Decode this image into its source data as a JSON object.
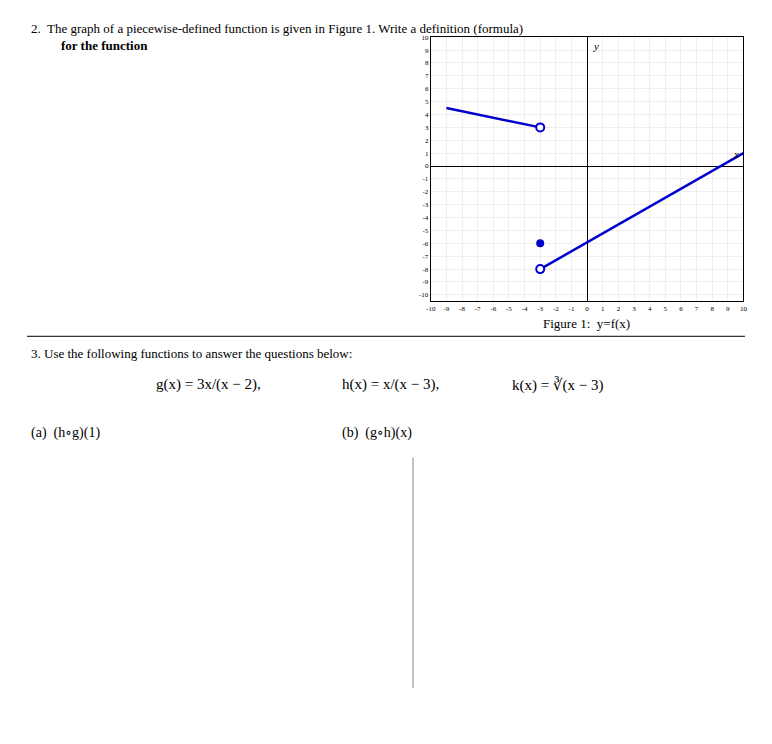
{
  "chart_data": {
    "type": "line",
    "xlabel": "x",
    "ylabel": "y",
    "xlim": [
      -10,
      10
    ],
    "ylim": [
      -10.5,
      10
    ],
    "xticks": [
      -10,
      -9,
      -8,
      -7,
      -6,
      -5,
      -4,
      -3,
      -2,
      -1,
      0,
      1,
      2,
      3,
      4,
      5,
      6,
      7,
      8,
      9,
      10
    ],
    "yticks": [
      -10,
      -9,
      -8,
      -7,
      -6,
      -5,
      -4,
      -3,
      -2,
      -1,
      0,
      1,
      2,
      3,
      4,
      5,
      6,
      7,
      8,
      9,
      10
    ],
    "grid": true,
    "annotations": [
      "2.  The graph of a piecewise-defined function is given in Figure 1. Write a definition (formula)",
      "for the function",
      "Figure 1:  y=f(x)",
      "3. Use the following functions to answer the questions below:",
      "g(x) = 3x/(x − 2),",
      "h(x) = x/(x − 3),",
      "k(x) = ∛(x − 3)",
      "(a)  (h∘g)(1)",
      "(b)  (g∘h)(x)"
    ],
    "series": [
      {
        "type": "line",
        "color": "#0000cc",
        "x": [
          -9,
          -3
        ],
        "values": [
          4.5,
          3
        ]
      },
      {
        "type": "scatter",
        "marker": "open_circle",
        "color": "#0000cc",
        "x": [
          -3
        ],
        "values": [
          3
        ]
      },
      {
        "type": "line",
        "color": "#0000cc",
        "x": [
          -3,
          10
        ],
        "values": [
          -8,
          1
        ]
      },
      {
        "type": "scatter",
        "marker": "open_circle",
        "color": "#0000cc",
        "x": [
          -3
        ],
        "values": [
          -8
        ]
      },
      {
        "type": "scatter",
        "marker": "circle",
        "color": "#0000cc",
        "x": [
          -3
        ],
        "values": [
          -6
        ]
      }
    ]
  }
}
